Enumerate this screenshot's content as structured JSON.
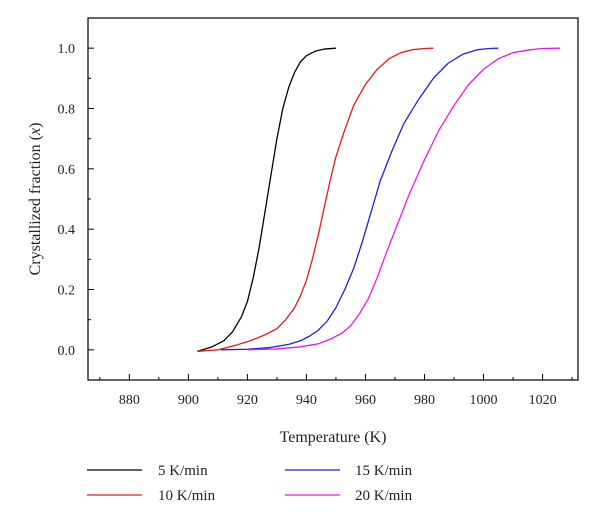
{
  "chart_data": {
    "type": "line",
    "title": "",
    "xlabel": "Temperature (K)",
    "ylabel_prefix": "Crystallized fraction (",
    "ylabel_var": "x",
    "ylabel_suffix": ")",
    "xlim": [
      866,
      1032
    ],
    "ylim": [
      -0.1,
      1.1
    ],
    "xticks": [
      880,
      900,
      920,
      940,
      960,
      980,
      1000,
      1020
    ],
    "xtick_labels": [
      "880",
      "900",
      "920",
      "940",
      "960",
      "980",
      "1000",
      "1020"
    ],
    "yticks": [
      0.0,
      0.2,
      0.4,
      0.6,
      0.8,
      1.0
    ],
    "ytick_labels": [
      "0.0",
      "0.2",
      "0.4",
      "0.6",
      "0.8",
      "1.0"
    ],
    "grid": false,
    "legend_position": "bottom",
    "series": [
      {
        "name": "5 K/min",
        "color": "#000000",
        "x": [
          903,
          908,
          912,
          915,
          918,
          920,
          922,
          924,
          926,
          928,
          930,
          932,
          934,
          936,
          938,
          940,
          943,
          946,
          950
        ],
        "y": [
          -0.005,
          0.01,
          0.03,
          0.06,
          0.11,
          0.16,
          0.24,
          0.34,
          0.46,
          0.58,
          0.7,
          0.8,
          0.87,
          0.92,
          0.955,
          0.975,
          0.99,
          0.997,
          1.0
        ]
      },
      {
        "name": "10 K/min",
        "color": "#e31a1c",
        "x": [
          903,
          910,
          916,
          921,
          926,
          930,
          933,
          936,
          938,
          940,
          942,
          944,
          946,
          948,
          950,
          953,
          956,
          960,
          964,
          968,
          972,
          976,
          980,
          983
        ],
        "y": [
          -0.005,
          0.0,
          0.015,
          0.03,
          0.05,
          0.07,
          0.1,
          0.14,
          0.18,
          0.23,
          0.3,
          0.38,
          0.47,
          0.56,
          0.64,
          0.73,
          0.81,
          0.88,
          0.93,
          0.965,
          0.985,
          0.995,
          0.999,
          1.0
        ]
      },
      {
        "name": "15 K/min",
        "color": "#1f1fd6",
        "x": [
          911,
          920,
          928,
          934,
          938,
          941,
          944,
          947,
          950,
          953,
          956,
          959,
          962,
          965,
          969,
          973,
          978,
          983,
          988,
          993,
          998,
          1002,
          1005
        ],
        "y": [
          0.0,
          0.002,
          0.008,
          0.018,
          0.03,
          0.045,
          0.065,
          0.095,
          0.14,
          0.2,
          0.27,
          0.36,
          0.46,
          0.56,
          0.66,
          0.75,
          0.83,
          0.9,
          0.95,
          0.98,
          0.995,
          0.999,
          1.0
        ]
      },
      {
        "name": "20 K/min",
        "color": "#e619e6",
        "x": [
          920,
          930,
          938,
          944,
          948,
          952,
          955,
          958,
          961,
          964,
          967,
          971,
          975,
          980,
          985,
          990,
          995,
          1000,
          1005,
          1010,
          1016,
          1020,
          1026
        ],
        "y": [
          0.0,
          0.003,
          0.01,
          0.02,
          0.035,
          0.055,
          0.08,
          0.12,
          0.17,
          0.24,
          0.32,
          0.42,
          0.52,
          0.63,
          0.73,
          0.81,
          0.88,
          0.93,
          0.965,
          0.985,
          0.995,
          0.999,
          1.0
        ]
      }
    ]
  },
  "legend": {
    "items": [
      {
        "label": "5 K/min",
        "color": "#000000"
      },
      {
        "label": "15 K/min",
        "color": "#1f1fd6"
      },
      {
        "label": "10 K/min",
        "color": "#e31a1c"
      },
      {
        "label": "20 K/min",
        "color": "#e619e6"
      }
    ]
  }
}
